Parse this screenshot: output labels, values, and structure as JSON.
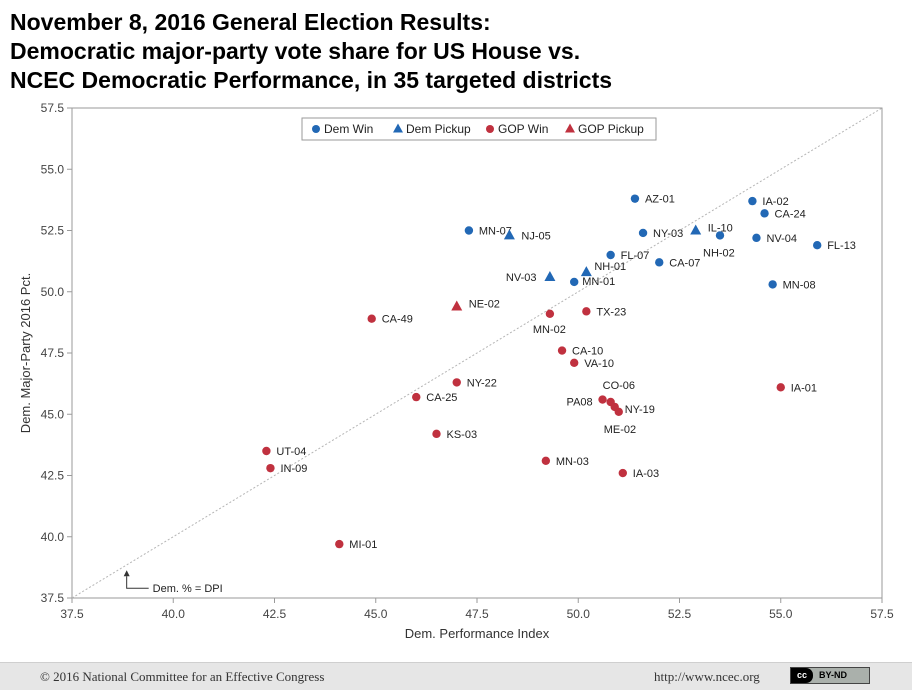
{
  "title": {
    "line1": "November 8, 2016 General Election Results:",
    "line2": "Democratic major-party vote share for US House vs.",
    "line3": "NCEC Democratic Performance, in 35 targeted districts"
  },
  "chart_data": {
    "type": "scatter",
    "xlabel": "Dem. Performance Index",
    "ylabel": "Dem. Major-Party 2016 Pct.",
    "xlim": [
      37.5,
      57.5
    ],
    "ylim": [
      37.5,
      57.5
    ],
    "xticks": [
      "37.5",
      "40.0",
      "42.5",
      "45.0",
      "47.5",
      "50.0",
      "52.5",
      "55.0",
      "57.5"
    ],
    "yticks": [
      "37.5",
      "40.0",
      "42.5",
      "45.0",
      "47.5",
      "50.0",
      "52.5",
      "55.0",
      "57.5"
    ],
    "grid": false,
    "legend_position": "top-center",
    "reference_line_label": "Dem. % = DPI",
    "series": [
      {
        "name": "Dem Win",
        "marker": "circle",
        "color": "#2268b5",
        "points": [
          {
            "label": "AZ-01",
            "x": 51.4,
            "y": 53.8
          },
          {
            "label": "IA-02",
            "x": 54.3,
            "y": 53.7
          },
          {
            "label": "CA-24",
            "x": 54.6,
            "y": 53.2
          },
          {
            "label": "MN-07",
            "x": 47.3,
            "y": 52.5
          },
          {
            "label": "NY-03",
            "x": 51.6,
            "y": 52.4
          },
          {
            "label": "NV-04",
            "x": 54.4,
            "y": 52.2
          },
          {
            "label": "FL-13",
            "x": 55.9,
            "y": 51.9
          },
          {
            "label": "NH-02",
            "x": 53.5,
            "y": 52.3
          },
          {
            "label": "FL-07",
            "x": 50.8,
            "y": 51.5
          },
          {
            "label": "CA-07",
            "x": 52.0,
            "y": 51.2
          },
          {
            "label": "MN-01",
            "x": 49.9,
            "y": 50.4
          },
          {
            "label": "MN-08",
            "x": 54.8,
            "y": 50.3
          }
        ]
      },
      {
        "name": "Dem Pickup",
        "marker": "triangle",
        "color": "#2268b5",
        "points": [
          {
            "label": "NJ-05",
            "x": 48.3,
            "y": 52.3
          },
          {
            "label": "IL-10",
            "x": 52.9,
            "y": 52.5
          },
          {
            "label": "NV-03",
            "x": 49.3,
            "y": 50.6
          },
          {
            "label": "NH-01",
            "x": 50.2,
            "y": 50.8
          }
        ]
      },
      {
        "name": "GOP Win",
        "marker": "circle",
        "color": "#c0313f",
        "points": [
          {
            "label": "CA-49",
            "x": 44.9,
            "y": 48.9
          },
          {
            "label": "MN-02",
            "x": 49.3,
            "y": 49.1
          },
          {
            "label": "TX-23",
            "x": 50.2,
            "y": 49.2
          },
          {
            "label": "CA-10",
            "x": 49.6,
            "y": 47.6
          },
          {
            "label": "VA-10",
            "x": 49.9,
            "y": 47.1
          },
          {
            "label": "NY-22",
            "x": 47.0,
            "y": 46.3
          },
          {
            "label": "CA-25",
            "x": 46.0,
            "y": 45.7
          },
          {
            "label": "IA-01",
            "x": 55.0,
            "y": 46.1
          },
          {
            "label": "CO-06",
            "x": 50.8,
            "y": 45.5
          },
          {
            "label": "PA08",
            "x": 50.6,
            "y": 45.6
          },
          {
            "label": "NY-19",
            "x": 50.9,
            "y": 45.3
          },
          {
            "label": "ME-02",
            "x": 51.0,
            "y": 45.1
          },
          {
            "label": "KS-03",
            "x": 46.5,
            "y": 44.2
          },
          {
            "label": "UT-04",
            "x": 42.3,
            "y": 43.5
          },
          {
            "label": "IN-09",
            "x": 42.4,
            "y": 42.8
          },
          {
            "label": "MN-03",
            "x": 49.2,
            "y": 43.1
          },
          {
            "label": "IA-03",
            "x": 51.1,
            "y": 42.6
          },
          {
            "label": "MI-01",
            "x": 44.1,
            "y": 39.7
          }
        ]
      },
      {
        "name": "GOP Pickup",
        "marker": "triangle",
        "color": "#c0313f",
        "points": [
          {
            "label": "NE-02",
            "x": 47.0,
            "y": 49.4
          }
        ]
      }
    ]
  },
  "footer": {
    "copyright": "© 2016 National Committee for an Effective Congress",
    "url": "http://www.ncec.org",
    "license_cc": "cc",
    "license_text": "BY-ND"
  }
}
